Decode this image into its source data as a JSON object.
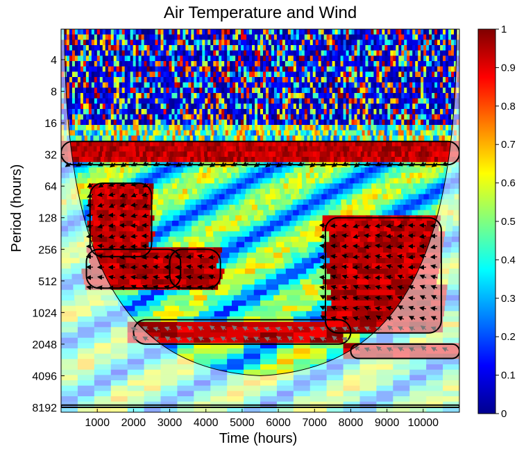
{
  "chart_data": {
    "type": "heatmap",
    "subtype": "wavelet-coherence",
    "title": "Air Temperature and Wind",
    "xlabel": "Time (hours)",
    "ylabel": "Period (hours)",
    "xlim": [
      0,
      11000
    ],
    "x_ticks": [
      1000,
      2000,
      3000,
      4000,
      5000,
      6000,
      7000,
      8000,
      9000,
      10000
    ],
    "y_scale": "log2",
    "y_ticks": [
      4,
      8,
      16,
      32,
      64,
      128,
      256,
      512,
      1024,
      2048,
      4096,
      8192
    ],
    "colorbar": {
      "min": 0,
      "max": 1,
      "colormap": "jet",
      "ticks": [
        0,
        0.1,
        0.2,
        0.3,
        0.4,
        0.5,
        0.6,
        0.7,
        0.8,
        0.9,
        1
      ]
    },
    "cone_of_influence_apex": {
      "time": 5500,
      "period": 4096
    },
    "significant_regions_high_coherence": [
      {
        "period_range": [
          24,
          40
        ],
        "time_range": [
          0,
          11000
        ]
      },
      {
        "period_range": [
          60,
          300
        ],
        "time_range": [
          800,
          2500
        ]
      },
      {
        "period_range": [
          256,
          600
        ],
        "time_range": [
          700,
          3300
        ]
      },
      {
        "period_range": [
          256,
          600
        ],
        "time_range": [
          3000,
          4400
        ]
      },
      {
        "period_range": [
          128,
          1600
        ],
        "time_range": [
          7300,
          10500
        ]
      },
      {
        "period_range": [
          1200,
          2048
        ],
        "time_range": [
          2000,
          8000
        ]
      },
      {
        "period_range": [
          2048,
          2800
        ],
        "time_range": [
          8000,
          11000
        ]
      },
      {
        "period_range": [
          7800,
          8192
        ],
        "time_range": [
          0,
          11000
        ]
      }
    ],
    "colors": {
      "high": "#a00000",
      "mid": "#ffd000",
      "low": "#0030c0",
      "contour": "#000000",
      "arrow": "#000000"
    }
  }
}
